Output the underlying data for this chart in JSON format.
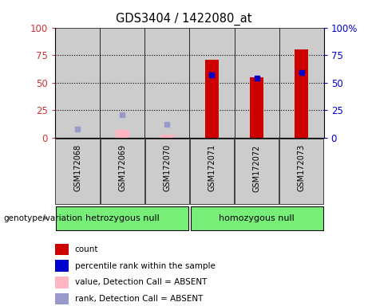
{
  "title": "GDS3404 / 1422080_at",
  "samples": [
    "GSM172068",
    "GSM172069",
    "GSM172070",
    "GSM172071",
    "GSM172072",
    "GSM172073"
  ],
  "groups": [
    {
      "label": "hetrozygous null",
      "span": [
        0,
        3
      ]
    },
    {
      "label": "homozygous null",
      "span": [
        3,
        6
      ]
    }
  ],
  "count_values": [
    0,
    0,
    0,
    71,
    55,
    80
  ],
  "percentile_rank": [
    null,
    null,
    null,
    57,
    54,
    59
  ],
  "absent_value": [
    0,
    7,
    3,
    null,
    null,
    null
  ],
  "absent_rank": [
    8,
    21,
    12,
    null,
    null,
    null
  ],
  "bar_width": 0.3,
  "bar_color_count": "#cc0000",
  "bar_color_absent_value": "#ffb6c1",
  "marker_color_rank": "#0000cc",
  "marker_color_absent_rank": "#9999cc",
  "col_bg_color": "#cccccc",
  "group_color": "#77ee77",
  "legend_items": [
    {
      "color": "#cc0000",
      "label": "count"
    },
    {
      "color": "#0000cc",
      "label": "percentile rank within the sample"
    },
    {
      "color": "#ffb6c1",
      "label": "value, Detection Call = ABSENT"
    },
    {
      "color": "#9999cc",
      "label": "rank, Detection Call = ABSENT"
    }
  ],
  "yticks": [
    0,
    25,
    50,
    75,
    100
  ],
  "left_ytick_color": "#cc3333",
  "right_ytick_color": "#0000cc",
  "right_ytick_labels": [
    "0",
    "25",
    "50",
    "75",
    "100%"
  ]
}
